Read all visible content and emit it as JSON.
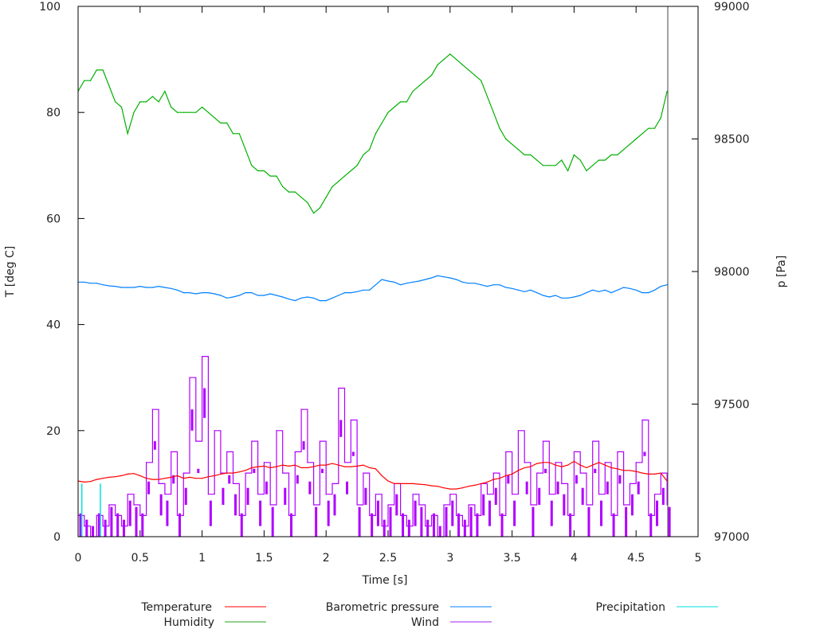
{
  "chart_data": {
    "type": "line",
    "xlabel": "Time [s]",
    "ylabel": "T [deg C]",
    "y2label": "p [Pa]",
    "xlim": [
      0,
      5
    ],
    "ylim": [
      0,
      100
    ],
    "y2lim": [
      97000,
      99000
    ],
    "xticks": [
      "0",
      "0.5",
      "1",
      "1.5",
      "2",
      "2.5",
      "3",
      "3.5",
      "4",
      "4.5",
      "5"
    ],
    "yticks": [
      "0",
      "20",
      "40",
      "60",
      "80",
      "100"
    ],
    "y2ticks": [
      "97000",
      "97500",
      "98000",
      "98500",
      "99000"
    ],
    "grid": false,
    "legend_position": "bottom",
    "x": [
      0,
      0.05,
      0.1,
      0.15,
      0.2,
      0.25,
      0.3,
      0.35,
      0.4,
      0.45,
      0.5,
      0.55,
      0.6,
      0.65,
      0.7,
      0.75,
      0.8,
      0.85,
      0.9,
      0.95,
      1,
      1.05,
      1.1,
      1.15,
      1.2,
      1.25,
      1.3,
      1.35,
      1.4,
      1.45,
      1.5,
      1.55,
      1.6,
      1.65,
      1.7,
      1.75,
      1.8,
      1.85,
      1.9,
      1.95,
      2,
      2.05,
      2.1,
      2.15,
      2.2,
      2.25,
      2.3,
      2.35,
      2.4,
      2.45,
      2.5,
      2.55,
      2.6,
      2.65,
      2.7,
      2.75,
      2.8,
      2.85,
      2.9,
      2.95,
      3,
      3.05,
      3.1,
      3.15,
      3.2,
      3.25,
      3.3,
      3.35,
      3.4,
      3.45,
      3.5,
      3.55,
      3.6,
      3.65,
      3.7,
      3.75,
      3.8,
      3.85,
      3.9,
      3.95,
      4,
      4.05,
      4.1,
      4.15,
      4.2,
      4.25,
      4.3,
      4.35,
      4.4,
      4.45,
      4.5,
      4.55,
      4.6,
      4.65,
      4.7,
      4.75
    ],
    "series": [
      {
        "name": "Temperature",
        "axis": "y",
        "color": "#ff0000",
        "style": "line",
        "values": [
          10.5,
          10.3,
          10.4,
          10.8,
          11,
          11.2,
          11.3,
          11.5,
          11.8,
          11.9,
          11.5,
          11,
          10.8,
          10.8,
          11,
          11.2,
          11.5,
          11,
          11.2,
          11,
          11,
          11.3,
          11.5,
          11.8,
          12,
          12,
          12.2,
          12.5,
          13,
          13.2,
          13.3,
          13,
          13.2,
          13.5,
          13.3,
          13.5,
          13,
          13,
          13.2,
          13.5,
          13.5,
          13.8,
          13.5,
          13.2,
          13.2,
          13.3,
          13.5,
          13,
          12.8,
          11.5,
          10.5,
          10,
          10,
          10,
          10,
          9.9,
          9.8,
          9.6,
          9.5,
          9.2,
          9,
          9,
          9.2,
          9.5,
          9.7,
          10,
          10.3,
          10.8,
          11,
          11.5,
          11.8,
          12.5,
          13,
          13.2,
          13.8,
          14,
          14,
          13.5,
          13.2,
          13.5,
          14.2,
          13.5,
          13,
          13.5,
          14,
          13.5,
          13,
          12.8,
          12.5,
          12.5,
          12.3,
          12,
          11.8,
          11.8,
          12,
          10.5
        ]
      },
      {
        "name": "Humidity",
        "axis": "y",
        "color": "#00b000",
        "style": "line",
        "values": [
          84,
          86,
          86,
          88,
          88,
          85,
          82,
          81,
          76,
          80,
          82,
          82,
          83,
          82,
          84,
          81,
          80,
          80,
          80,
          80,
          81,
          80,
          79,
          78,
          78,
          76,
          76,
          73,
          70,
          69,
          69,
          68,
          68,
          66,
          65,
          65,
          64,
          63,
          61,
          62,
          64,
          66,
          67,
          68,
          69,
          70,
          72,
          73,
          76,
          78,
          80,
          81,
          82,
          82,
          84,
          85,
          86,
          87,
          89,
          90,
          91,
          90,
          89,
          88,
          87,
          86,
          83,
          80,
          77,
          75,
          74,
          73,
          72,
          72,
          71,
          70,
          70,
          70,
          71,
          69,
          72,
          71,
          69,
          70,
          71,
          71,
          72,
          72,
          73,
          74,
          75,
          76,
          77,
          77,
          79,
          84
        ]
      },
      {
        "name": "Barometric pressure",
        "axis": "y2",
        "color": "#0080ff",
        "style": "line",
        "values": [
          97960,
          97960,
          97956,
          97956,
          97950,
          97946,
          97944,
          97940,
          97940,
          97940,
          97944,
          97940,
          97940,
          97944,
          97940,
          97936,
          97930,
          97920,
          97920,
          97916,
          97920,
          97920,
          97916,
          97910,
          97900,
          97904,
          97910,
          97920,
          97920,
          97910,
          97910,
          97916,
          97910,
          97904,
          97896,
          97890,
          97900,
          97904,
          97900,
          97890,
          97890,
          97900,
          97910,
          97920,
          97920,
          97924,
          97930,
          97930,
          97950,
          97970,
          97964,
          97960,
          97950,
          97956,
          97960,
          97964,
          97970,
          97976,
          97984,
          97980,
          97976,
          97970,
          97960,
          97956,
          97956,
          97950,
          97944,
          97950,
          97950,
          97940,
          97936,
          97930,
          97924,
          97930,
          97920,
          97910,
          97904,
          97910,
          97900,
          97900,
          97904,
          97910,
          97920,
          97930,
          97924,
          97930,
          97920,
          97930,
          97940,
          97936,
          97930,
          97920,
          97920,
          97930,
          97944,
          97950
        ]
      },
      {
        "name": "Precipitation",
        "axis": "y",
        "color": "#00e0e0",
        "style": "impulses",
        "points": [
          [
            0.03,
            10
          ],
          [
            0.18,
            10
          ]
        ]
      },
      {
        "name": "Wind",
        "axis": "y",
        "color": "#b000ff",
        "style": "steps",
        "values": [
          4,
          2,
          0,
          4,
          2,
          6,
          4,
          2,
          8,
          6,
          4,
          14,
          24,
          10,
          8,
          16,
          4,
          12,
          30,
          18,
          34,
          8,
          20,
          12,
          16,
          10,
          4,
          12,
          18,
          8,
          14,
          6,
          20,
          12,
          4,
          16,
          24,
          14,
          6,
          18,
          8,
          10,
          28,
          14,
          22,
          6,
          12,
          4,
          8,
          2,
          6,
          10,
          4,
          2,
          8,
          6,
          2,
          4,
          0,
          6,
          8,
          4,
          2,
          6,
          4,
          10,
          8,
          12,
          4,
          16,
          8,
          20,
          14,
          6,
          12,
          18,
          8,
          14,
          10,
          4,
          16,
          12,
          6,
          18,
          8,
          14,
          4,
          16,
          6,
          10,
          14,
          22,
          4,
          8,
          12,
          6
        ]
      }
    ],
    "legend": [
      {
        "label": "Temperature",
        "color": "#ff0000"
      },
      {
        "label": "Humidity",
        "color": "#20a020"
      },
      {
        "label": "Barometric pressure",
        "color": "#0080ff"
      },
      {
        "label": "Wind",
        "color": "#a020f0"
      },
      {
        "label": "Precipitation",
        "color": "#00e0e0"
      }
    ]
  }
}
